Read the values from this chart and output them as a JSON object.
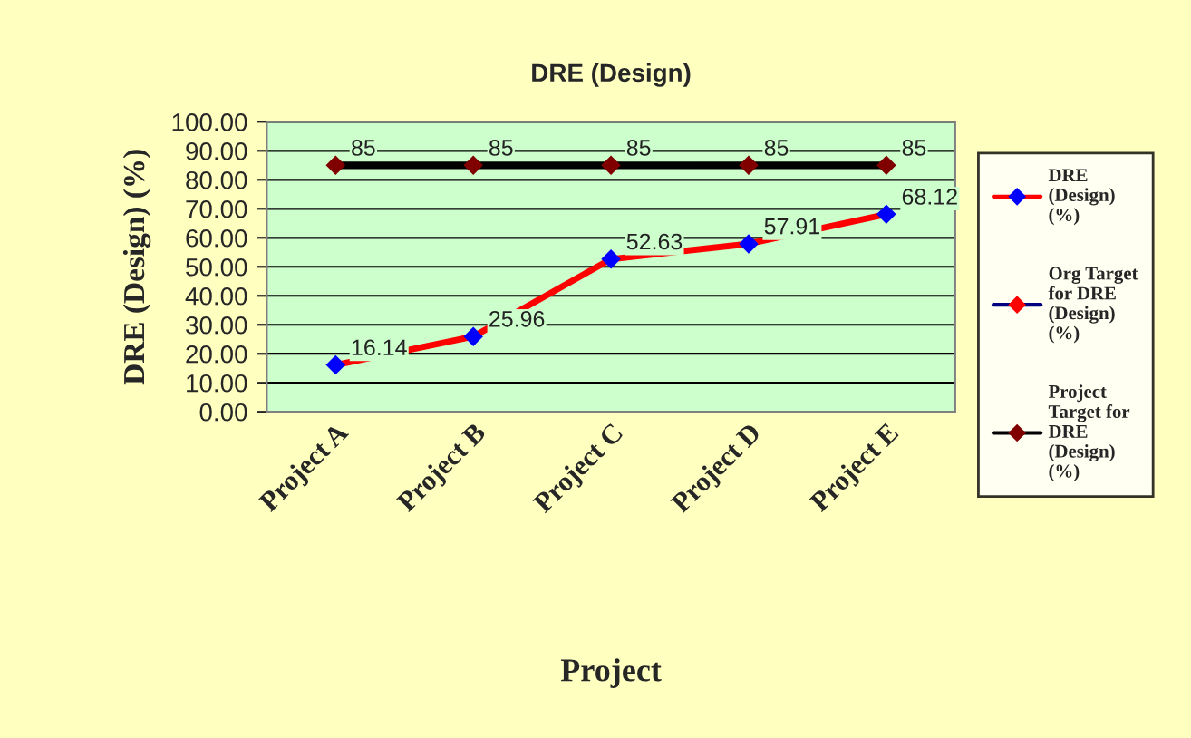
{
  "chart_data": {
    "type": "line",
    "title": "DRE (Design)",
    "xlabel": "Project",
    "ylabel": "DRE (Design) (%)",
    "categories": [
      "Project A",
      "Project B",
      "Project C",
      "Project D",
      "Project E"
    ],
    "series": [
      {
        "name": "DRE (Design) (%)",
        "color": "#ff0000",
        "colors": [
          "#0000ff",
          "#0000ff",
          "#0000ff",
          "#0000ff",
          "#0000ff"
        ],
        "values": [
          16.14,
          25.96,
          52.63,
          57.91,
          68.12
        ]
      },
      {
        "name": "Org Target for DRE (Design) (%)",
        "color": "#000080",
        "colors": [
          "#ff0000",
          "#ff0000",
          "#ff0000",
          "#ff0000",
          "#ff0000"
        ],
        "values": [
          null,
          null,
          null,
          null,
          null
        ]
      },
      {
        "name": "Project Target for DRE (Design) (%)",
        "color": "#000000",
        "colors": [
          "#800000",
          "#800000",
          "#800000",
          "#800000",
          "#800000"
        ],
        "values": [
          85,
          85,
          85,
          85,
          85
        ]
      }
    ],
    "ylim": [
      0,
      100
    ],
    "yticks": [
      {
        "value": 0,
        "label": "0.00"
      },
      {
        "value": 10,
        "label": "10.00"
      },
      {
        "value": 20,
        "label": "20.00"
      },
      {
        "value": 30,
        "label": "30.00"
      },
      {
        "value": 40,
        "label": "40.00"
      },
      {
        "value": 50,
        "label": "50.00"
      },
      {
        "value": 60,
        "label": "60.00"
      },
      {
        "value": 70,
        "label": "70.00"
      },
      {
        "value": 80,
        "label": "80.00"
      },
      {
        "value": 90,
        "label": "90.00"
      },
      {
        "value": 100,
        "label": "100.00"
      }
    ],
    "grid": "y",
    "legend": "right",
    "marker": "diamond",
    "line_style": "solid",
    "data_labels": true
  }
}
